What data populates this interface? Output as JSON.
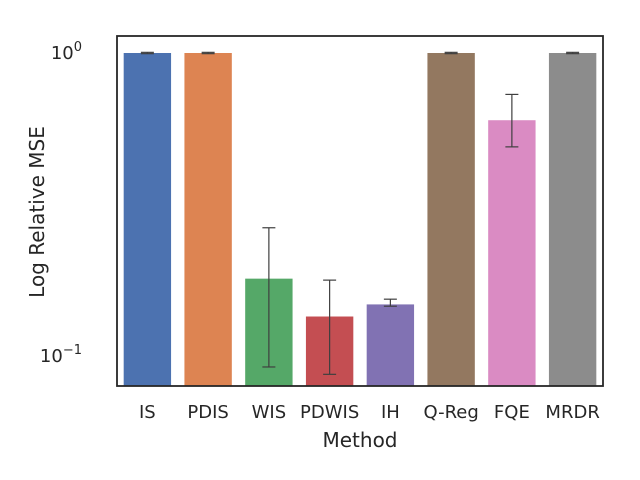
{
  "chart_data": {
    "type": "bar",
    "title": "",
    "xlabel": "Method",
    "ylabel": "Log Relative MSE",
    "yscale": "log",
    "ylim": [
      0.075,
      1.2
    ],
    "yticks": [
      {
        "value": 1.0,
        "base": "10",
        "exponent": "0"
      },
      {
        "value": 0.1,
        "base": "10",
        "exponent": "−1"
      }
    ],
    "categories": [
      "IS",
      "PDIS",
      "WIS",
      "PDWIS",
      "IH",
      "Q-Reg",
      "FQE",
      "MRDR"
    ],
    "values": [
      1.0,
      1.0,
      0.18,
      0.135,
      0.148,
      1.0,
      0.6,
      1.0
    ],
    "error_low": [
      0.995,
      0.995,
      0.092,
      0.087,
      0.146,
      0.995,
      0.49,
      0.995
    ],
    "error_high": [
      1.005,
      1.005,
      0.265,
      0.178,
      0.154,
      1.005,
      0.73,
      1.005
    ],
    "colors": [
      "#4c72b0",
      "#dd8452",
      "#55a868",
      "#c44e52",
      "#8172b3",
      "#937860",
      "#da8bc3",
      "#8c8c8c"
    ],
    "grid": false,
    "legend": "none"
  }
}
